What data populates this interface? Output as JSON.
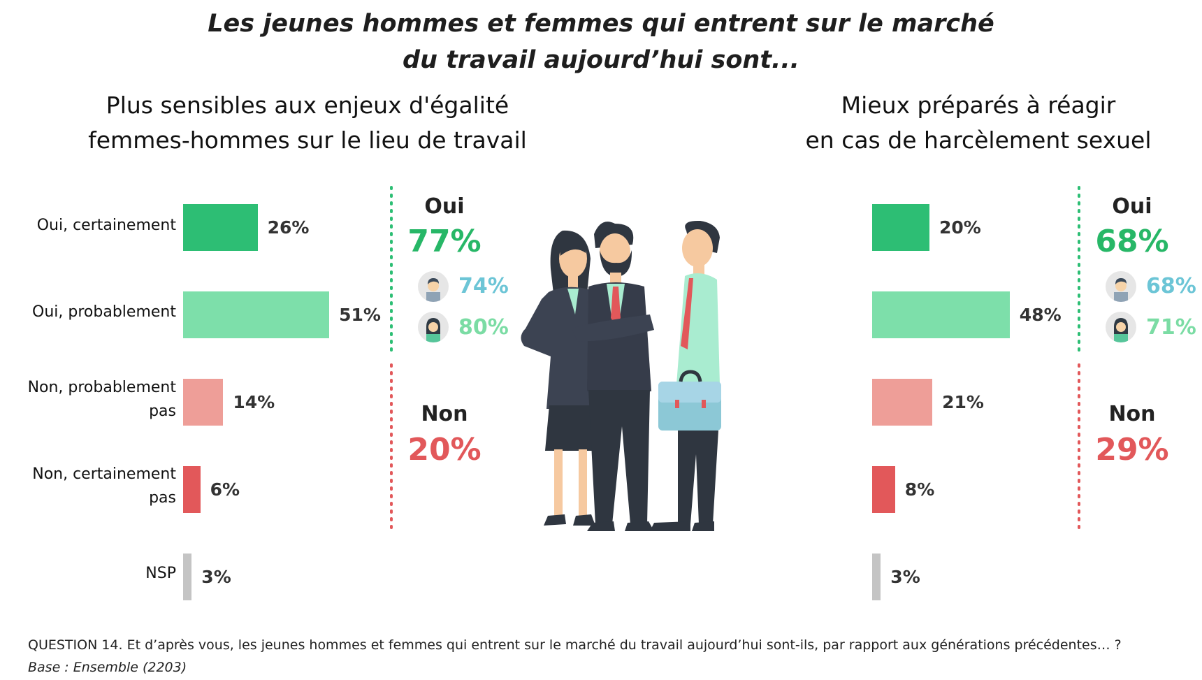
{
  "title_line1": "Les jeunes hommes et femmes qui entrent sur le marché",
  "title_line2": "du travail aujourd’hui sont...",
  "colors": {
    "oui_certainement": "#2dbe74",
    "oui_probablement": "#7ddfaa",
    "non_probablement": "#ee9e98",
    "non_certainement": "#e2585a",
    "nsp": "#c4c4c4",
    "oui_text": "#27b767",
    "non_text": "#e2585a",
    "men_text": "#6cc5d6",
    "women_text": "#7bdca4"
  },
  "chart_data": [
    {
      "type": "bar",
      "orientation": "horizontal",
      "title_line1": "Plus sensibles aux enjeux d'égalité",
      "title_line2": "femmes-hommes sur le lieu de travail",
      "categories": [
        "Oui, certainement",
        "Oui, probablement",
        "Non, probablement pas",
        "Non, certainement pas",
        "NSP"
      ],
      "values": [
        26,
        51,
        14,
        6,
        3
      ],
      "value_labels": [
        "26%",
        "51%",
        "14%",
        "6%",
        "3%"
      ],
      "summary": {
        "oui_label": "Oui",
        "oui_value": "77%",
        "men_value": "74%",
        "women_value": "80%",
        "non_label": "Non",
        "non_value": "20%"
      }
    },
    {
      "type": "bar",
      "orientation": "horizontal",
      "title_line1": "Mieux préparés à réagir",
      "title_line2": "en cas de harcèlement sexuel",
      "categories": [
        "Oui, certainement",
        "Oui, probablement",
        "Non, probablement pas",
        "Non, certainement pas",
        "NSP"
      ],
      "values": [
        20,
        48,
        21,
        8,
        3
      ],
      "value_labels": [
        "20%",
        "48%",
        "21%",
        "8%",
        "3%"
      ],
      "summary": {
        "oui_label": "Oui",
        "oui_value": "68%",
        "men_value": "68%",
        "women_value": "71%",
        "non_label": "Non",
        "non_value": "29%"
      }
    }
  ],
  "labels": {
    "cat1": "Oui, certainement",
    "cat2": "Oui, probablement",
    "cat3a": "Non, probablement",
    "cat3b": "pas",
    "cat4a": "Non, certainement",
    "cat4b": "pas",
    "cat5": "NSP"
  },
  "footer": {
    "question": "QUESTION 14.      Et d’après vous, les jeunes hommes et femmes qui entrent sur le marché du travail aujourd’hui sont-ils, par rapport aux générations précédentes… ?",
    "base": "Base : Ensemble (2203)"
  },
  "icons": [
    "man-avatar-icon",
    "woman-avatar-icon"
  ]
}
